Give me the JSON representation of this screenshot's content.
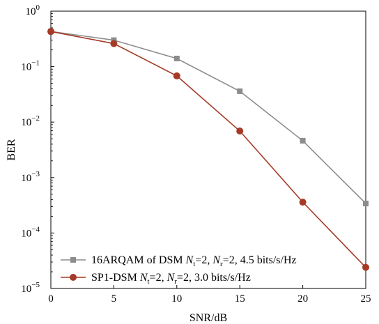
{
  "chart_data": {
    "type": "line",
    "xlabel": "SNR/dB",
    "ylabel": "BER",
    "xlim": [
      0,
      25
    ],
    "ylim": [
      1e-05,
      1
    ],
    "yscale": "log",
    "x": [
      0,
      5,
      10,
      15,
      20,
      25
    ],
    "x_ticks": [
      "0",
      "5",
      "10",
      "15",
      "20",
      "25"
    ],
    "y_ticks": [
      {
        "base": "10",
        "exp": "0",
        "value": 1
      },
      {
        "base": "10",
        "exp": "−1",
        "value": 0.1
      },
      {
        "base": "10",
        "exp": "−2",
        "value": 0.01
      },
      {
        "base": "10",
        "exp": "−3",
        "value": 0.001
      },
      {
        "base": "10",
        "exp": "−4",
        "value": 0.0001
      },
      {
        "base": "10",
        "exp": "−5",
        "value": 1e-05
      }
    ],
    "legend_position": "bottom-left",
    "series": [
      {
        "name": "16ARQAM of DSM N_t=2, N_r=2, 4.5 bits/s/Hz",
        "label_parts": {
          "pre": "16ARQAM of DSM ",
          "n": "N",
          "sub1": "t",
          "mid": "=2, ",
          "n2": "N",
          "sub2": "r",
          "post": "=2, 4.5 bits/s/Hz"
        },
        "color": "#8c8c8c",
        "marker": "square",
        "values": [
          0.43,
          0.3,
          0.14,
          0.036,
          0.0046,
          0.00034
        ]
      },
      {
        "name": "SP1-DSM N_t=2, N_r=2, 3.0 bits/s/Hz",
        "label_parts": {
          "pre": "SP1-DSM ",
          "n": "N",
          "sub1": "t",
          "mid": "=2, ",
          "n2": "N",
          "sub2": "r",
          "post": "=2, 3.0 bits/s/Hz"
        },
        "color": "#a53a26",
        "marker": "circle",
        "values": [
          0.43,
          0.26,
          0.068,
          0.0069,
          0.00036,
          2.4e-05
        ]
      }
    ]
  }
}
